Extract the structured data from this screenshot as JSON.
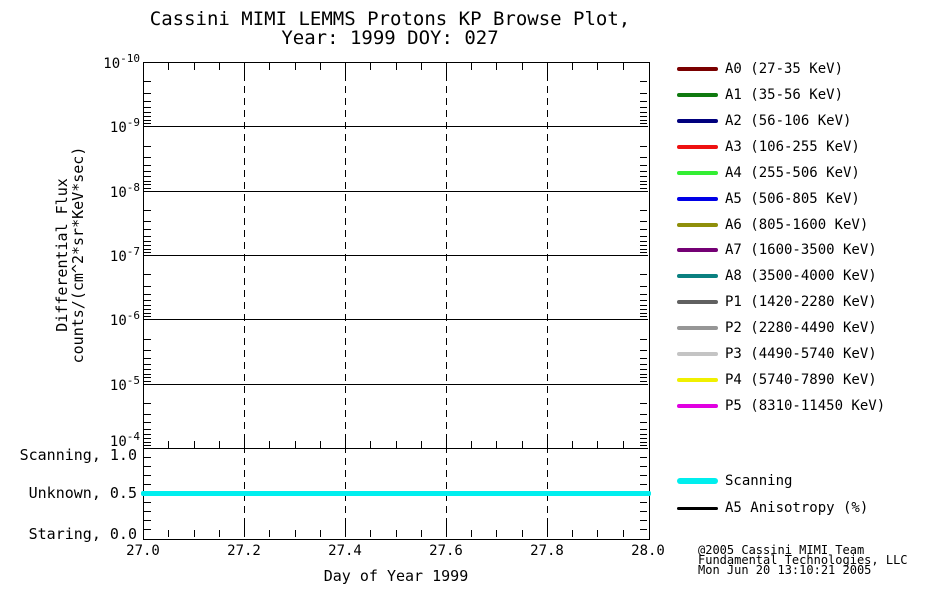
{
  "title": {
    "line1": "Cassini MIMI LEMMS Protons KP Browse Plot,",
    "line2": "Year: 1999 DOY: 027"
  },
  "chart_data": {
    "type": "line",
    "title": "Cassini MIMI LEMMS Protons KP Browse Plot, Year: 1999 DOY: 027",
    "xlabel": "Day of Year 1999",
    "xlim": [
      27.0,
      28.0
    ],
    "x_ticks": [
      27.0,
      27.2,
      27.4,
      27.6,
      27.8,
      28.0
    ],
    "x_tick_labels": [
      "27.0",
      "27.2",
      "27.4",
      "27.6",
      "27.8",
      "28.0"
    ],
    "x_minor_tick_step": 0.05,
    "grid": {
      "horizontal": "solid",
      "vertical": "dashed"
    },
    "panels": [
      {
        "name": "differential-flux",
        "scale": "log",
        "ylabel_line1": "Differential Flux",
        "ylabel_line2": "counts/(cm^2*sr*KeV*sec)",
        "y_tick_exponents": [
          -10,
          -9,
          -8,
          -7,
          -6,
          -5,
          -4
        ],
        "y_top_exponent": -10,
        "y_bottom_exponent": -4,
        "series": []
      },
      {
        "name": "pointing-mode",
        "scale": "linear",
        "ylim": [
          0.0,
          1.0
        ],
        "y_ticks": [
          {
            "label": "Scanning, 1.0",
            "value": 1.0
          },
          {
            "label": "Unknown, 0.5",
            "value": 0.5
          },
          {
            "label": "Staring, 0.0",
            "value": 0.0
          }
        ],
        "series": [
          {
            "name": "Scanning",
            "color": "#00EEEE",
            "x": [
              27.0,
              28.0
            ],
            "y": [
              0.5,
              0.5
            ]
          }
        ]
      }
    ]
  },
  "legend": {
    "channels": [
      {
        "id": "A0",
        "label": "A0 (27-35 KeV)",
        "color": "#7A0000"
      },
      {
        "id": "A1",
        "label": "A1 (35-56 KeV)",
        "color": "#0F7A0F"
      },
      {
        "id": "A2",
        "label": "A2 (56-106 KeV)",
        "color": "#00007D"
      },
      {
        "id": "A3",
        "label": "A3 (106-255 KeV)",
        "color": "#EE1111"
      },
      {
        "id": "A4",
        "label": "A4 (255-506 KeV)",
        "color": "#33EE33"
      },
      {
        "id": "A5",
        "label": "A5 (506-805 KeV)",
        "color": "#0000E6"
      },
      {
        "id": "A6",
        "label": "A6 (805-1600 KeV)",
        "color": "#8F8F0A"
      },
      {
        "id": "A7",
        "label": "A7 (1600-3500 KeV)",
        "color": "#740074"
      },
      {
        "id": "A8",
        "label": "A8 (3500-4000 KeV)",
        "color": "#0A8080"
      },
      {
        "id": "P1",
        "label": "P1 (1420-2280 KeV)",
        "color": "#606060"
      },
      {
        "id": "P2",
        "label": "P2 (2280-4490 KeV)",
        "color": "#969696"
      },
      {
        "id": "P3",
        "label": "P3 (4490-5740 KeV)",
        "color": "#C4C4C4"
      },
      {
        "id": "P4",
        "label": "P4 (5740-7890 KeV)",
        "color": "#F0F000"
      },
      {
        "id": "P5",
        "label": "P5 (8310-11450 KeV)",
        "color": "#E100E1"
      }
    ],
    "modes": [
      {
        "id": "scanning",
        "label": "Scanning",
        "color": "#00EEEE",
        "thickness": 6
      },
      {
        "id": "a5-anisotropy",
        "label": "A5 Anisotropy (%)",
        "color": "#000000",
        "thickness": 3
      }
    ]
  },
  "credit": {
    "line1": "@2005 Cassini MIMI Team",
    "line2": "Fundamental Technologies, LLC",
    "line3": "Mon Jun 20 13:10:21 2005"
  }
}
